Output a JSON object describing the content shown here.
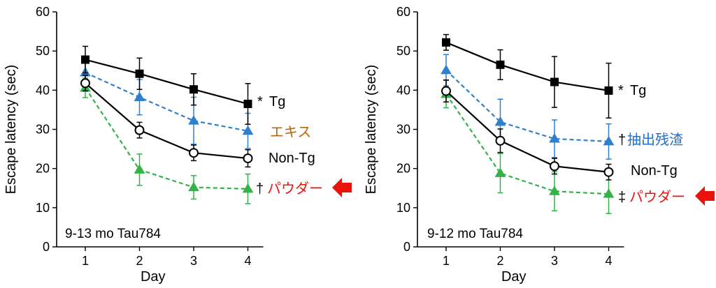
{
  "colors": {
    "tg": "#000000",
    "nontg": "#000000",
    "extract": "#2f7fcf",
    "powder": "#33b24a",
    "extract_label_left": "#b8650f",
    "extract_label_right": "#1f6fd0",
    "powder_label": "#e8140c",
    "arrow": "#e8140c"
  },
  "chart_data": [
    {
      "type": "line",
      "caption": "9-13 mo Tau784",
      "xlabel": "Day",
      "ylabel": "Escape latency (sec)",
      "xticks": [
        "1",
        "2",
        "3",
        "4"
      ],
      "ylim": [
        0,
        60
      ],
      "yticks": [
        "0",
        "10",
        "20",
        "30",
        "40",
        "50",
        "60"
      ],
      "x": [
        1,
        2,
        3,
        4
      ],
      "series": [
        {
          "name": "Tg",
          "mark": "*",
          "marker": "square",
          "dash": false,
          "color": "#000000",
          "values": [
            47.8,
            44.2,
            40.2,
            36.5
          ],
          "err": [
            3.4,
            4.0,
            4.0,
            5.2
          ]
        },
        {
          "name": "エキス",
          "mark": "",
          "marker": "triangle",
          "dash": true,
          "color": "#2f7fcf",
          "values": [
            44.5,
            38.2,
            32.2,
            29.6
          ],
          "err": [
            2.5,
            4.5,
            6.0,
            4.5
          ]
        },
        {
          "name": "Non-Tg",
          "mark": "",
          "marker": "circle",
          "dash": false,
          "color": "#000000",
          "values": [
            41.8,
            29.8,
            24.0,
            22.6
          ],
          "err": [
            2.0,
            2.0,
            2.0,
            2.2
          ]
        },
        {
          "name": "パウダー",
          "mark": "†",
          "marker": "triangle",
          "dash": true,
          "color": "#33b24a",
          "values": [
            40.6,
            19.7,
            15.2,
            14.8
          ],
          "err": [
            2.5,
            4.0,
            3.0,
            3.8
          ]
        }
      ]
    },
    {
      "type": "line",
      "caption": "9-12 mo Tau784",
      "xlabel": "Day",
      "ylabel": "Escape latency (sec)",
      "xticks": [
        "1",
        "2",
        "3",
        "4"
      ],
      "ylim": [
        0,
        60
      ],
      "yticks": [
        "0",
        "10",
        "20",
        "30",
        "40",
        "50",
        "60"
      ],
      "x": [
        1,
        2,
        3,
        4
      ],
      "series": [
        {
          "name": "Tg",
          "mark": "*",
          "marker": "square",
          "dash": false,
          "color": "#000000",
          "values": [
            52.2,
            46.5,
            42.1,
            39.9
          ],
          "err": [
            2.0,
            3.8,
            6.5,
            7.0
          ]
        },
        {
          "name": "抽出残渣",
          "mark": "†",
          "marker": "triangle",
          "dash": true,
          "color": "#2f7fcf",
          "values": [
            45.1,
            31.9,
            27.6,
            26.9
          ],
          "err": [
            4.0,
            5.8,
            4.8,
            4.5
          ]
        },
        {
          "name": "Non-Tg",
          "mark": "",
          "marker": "circle",
          "dash": false,
          "color": "#000000",
          "values": [
            39.8,
            27.1,
            20.6,
            19.1
          ],
          "err": [
            2.8,
            3.0,
            2.0,
            2.0
          ]
        },
        {
          "name": "パウダー",
          "mark": "‡",
          "marker": "triangle",
          "dash": true,
          "color": "#33b24a",
          "values": [
            39.0,
            18.8,
            14.2,
            13.5
          ],
          "err": [
            3.5,
            5.0,
            5.0,
            5.0
          ]
        }
      ]
    }
  ]
}
